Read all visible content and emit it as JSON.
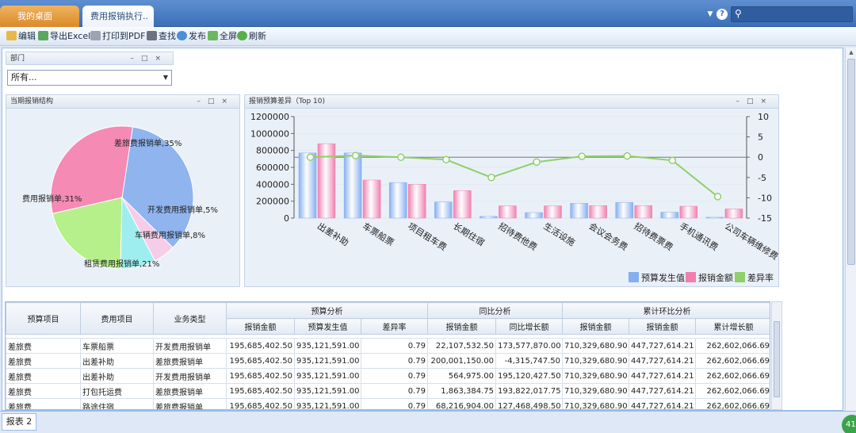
{
  "tabs": {
    "home": "我的桌面",
    "active": "费用报销执行.."
  },
  "toolbar": {
    "edit": "编辑",
    "export_excel": "导出Excel",
    "print_pdf": "打印到PDF",
    "find": "查找",
    "publish": "发布",
    "fullscreen": "全屏",
    "refresh": "刷新"
  },
  "dept_panel": {
    "title": "部门",
    "selected": "所有..."
  },
  "pie_panel": {
    "title": "当期报销结构",
    "slices": [
      {
        "label": "差旅费报销单,35%",
        "value": 35,
        "color": "#8fb4ee"
      },
      {
        "label": "开发费用报销单,5%",
        "value": 5,
        "color": "#f6cde8"
      },
      {
        "label": "车辆费用报销单,8%",
        "value": 8,
        "color": "#9eeef0"
      },
      {
        "label": "租赁费用报销单,21%",
        "value": 21,
        "color": "#b6f08a"
      },
      {
        "label": "费用报销单,31%",
        "value": 31,
        "color": "#f58ab4"
      }
    ]
  },
  "bar_panel": {
    "title": "报销预算差异（Top 10)"
  },
  "chart_data": [
    {
      "type": "pie",
      "title": "当期报销结构",
      "categories": [
        "差旅费报销单",
        "开发费用报销单",
        "车辆费用报销单",
        "租赁费用报销单",
        "费用报销单"
      ],
      "values": [
        35,
        5,
        8,
        21,
        31
      ]
    },
    {
      "type": "bar",
      "title": "报销预算差异（Top 10)",
      "categories": [
        "出差补助",
        "车票船票",
        "项目租车费",
        "长期住宿",
        "招待费他费",
        "生活设施",
        "会议会务费",
        "招待费票费",
        "手机通讯费",
        "公司车辆维修费"
      ],
      "series": [
        {
          "name": "预算发生值",
          "values": [
            770000,
            770000,
            420000,
            190000,
            20000,
            65000,
            175000,
            185000,
            70000,
            10000
          ],
          "color": "#86aef0"
        },
        {
          "name": "报销金额",
          "values": [
            880000,
            450000,
            400000,
            325000,
            145000,
            145000,
            148000,
            148000,
            140000,
            108000
          ],
          "color": "#f07fae"
        },
        {
          "name": "差异率",
          "values": [
            0,
            0.4,
            0,
            -0.6,
            -5,
            -1.2,
            0.2,
            0.3,
            -0.8,
            -9.7
          ],
          "color": "#8fd06a",
          "axis": "right"
        }
      ],
      "ylim": [
        0,
        1200000
      ],
      "yticks": [
        "1200000",
        "1000000",
        "800000",
        "600000",
        "400000",
        "200000",
        "0"
      ],
      "y2lim": [
        -15,
        10
      ],
      "y2ticks": [
        "10",
        "5",
        "0",
        "-5",
        "-10",
        "-15"
      ],
      "legend": "bottom-right"
    }
  ],
  "grid": {
    "headers": {
      "budget_item": "预算项目",
      "expense_item": "费用项目",
      "biz_type": "业务类型",
      "g1": "预算分析",
      "g2": "同比分析",
      "g3": "累计环比分析",
      "sub": [
        "报销金额",
        "预算发生值",
        "差异率",
        "报销金额",
        "同比增长额",
        "报销金额",
        "报销金额",
        "累计增长额"
      ]
    },
    "rows": [
      [
        "差旅费",
        "车票船票",
        "开发费用报销单",
        "195,685,402.50",
        "935,121,591.00",
        "0.79",
        "22,107,532.50",
        "173,577,870.00",
        "710,329,680.90",
        "447,727,614.21",
        "262,602,066.69"
      ],
      [
        "差旅费",
        "出差补助",
        "差旅费报销单",
        "195,685,402.50",
        "935,121,591.00",
        "0.79",
        "200,001,150.00",
        "-4,315,747.50",
        "710,329,680.90",
        "447,727,614.21",
        "262,602,066.69"
      ],
      [
        "差旅费",
        "出差补助",
        "开发费用报销单",
        "195,685,402.50",
        "935,121,591.00",
        "0.79",
        "564,975.00",
        "195,120,427.50",
        "710,329,680.90",
        "447,727,614.21",
        "262,602,066.69"
      ],
      [
        "差旅费",
        "打包托运费",
        "差旅费报销单",
        "195,685,402.50",
        "935,121,591.00",
        "0.79",
        "1,863,384.75",
        "193,822,017.75",
        "710,329,680.90",
        "447,727,614.21",
        "262,602,066.69"
      ],
      [
        "差旅费",
        "路途住宿",
        "差旅费报销单",
        "195,685,402.50",
        "935,121,591.00",
        "0.79",
        "68,216,904.00",
        "127,468,498.50",
        "710,329,680.90",
        "447,727,614.21",
        "262,602,066.69"
      ]
    ]
  },
  "bottom": {
    "sheet_tab": "报表 2",
    "badge": "41"
  }
}
